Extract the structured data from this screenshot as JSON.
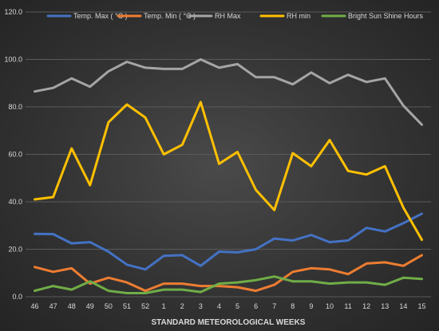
{
  "chart_data": {
    "type": "line",
    "title": "",
    "xlabel": "STANDARD METEOROLOGICAL WEEKS",
    "ylabel": "",
    "categories": [
      "46",
      "47",
      "48",
      "49",
      "50",
      "51",
      "52",
      "1",
      "2",
      "3",
      "4",
      "5",
      "6",
      "7",
      "8",
      "9",
      "10",
      "11",
      "12",
      "13",
      "14",
      "15"
    ],
    "ylim": [
      0,
      120
    ],
    "yticks": [
      0,
      20,
      40,
      60,
      80,
      100,
      120
    ],
    "ytick_labels": [
      "0.0",
      "20.0",
      "40.0",
      "60.0",
      "80.0",
      "100.0",
      "120.0"
    ],
    "grid": true,
    "legend_position": "top",
    "series": [
      {
        "name": "Temp. Max ( °C )",
        "color": "#4472C4",
        "values": [
          26.5,
          26.4,
          22.5,
          23.0,
          19.0,
          13.5,
          11.5,
          17.2,
          17.5,
          13.0,
          19.0,
          18.7,
          20.0,
          24.5,
          23.7,
          26.0,
          23.0,
          23.7,
          29.0,
          27.5,
          31.0,
          35.0
        ]
      },
      {
        "name": "Temp. Min ( °C )",
        "color": "#ED7D31",
        "values": [
          12.5,
          10.5,
          12.0,
          5.5,
          8.0,
          6.0,
          2.5,
          5.5,
          5.5,
          4.5,
          4.5,
          4.0,
          2.5,
          5.0,
          10.5,
          12.0,
          11.5,
          9.5,
          14.0,
          14.5,
          13.0,
          17.5
        ]
      },
      {
        "name": "RH Max",
        "color": "#A5A5A5",
        "values": [
          86.5,
          88.0,
          92.0,
          88.5,
          95.0,
          99.0,
          96.5,
          96.0,
          96.0,
          100.0,
          96.5,
          98.0,
          92.5,
          92.5,
          89.5,
          94.5,
          90.0,
          93.5,
          90.5,
          92.0,
          80.5,
          72.5
        ]
      },
      {
        "name": "RH min",
        "color": "#FFC000",
        "values": [
          41.0,
          42.0,
          62.5,
          47.0,
          73.5,
          81.0,
          75.5,
          60.0,
          64.0,
          82.0,
          56.0,
          61.0,
          45.0,
          36.5,
          60.5,
          55.0,
          66.0,
          53.0,
          51.5,
          55.0,
          37.5,
          24.0
        ]
      },
      {
        "name": "Bright Sun Shine Hours",
        "color": "#70AD47",
        "values": [
          2.5,
          4.5,
          3.0,
          6.5,
          2.5,
          1.5,
          1.5,
          3.0,
          3.0,
          2.0,
          5.5,
          6.0,
          7.0,
          8.5,
          6.5,
          6.5,
          5.5,
          6.0,
          6.0,
          5.0,
          8.0,
          7.5
        ]
      }
    ]
  }
}
